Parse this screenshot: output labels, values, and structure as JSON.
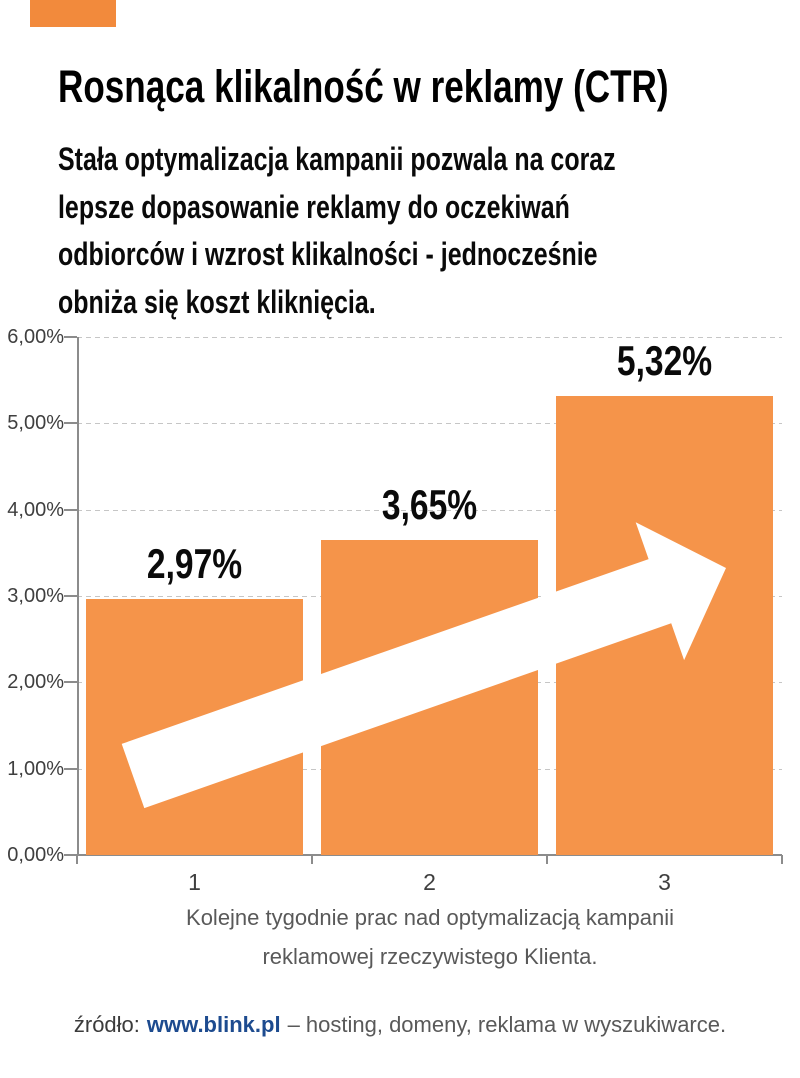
{
  "header": {
    "title": "Rosnąca klikalność w reklamy (CTR)",
    "subtitle_lines": [
      "Stała optymalizacja kampanii pozwala na coraz",
      "lepsze dopasowanie reklamy do oczekiwań",
      "odbiorców i wzrost klikalności - jednocześnie",
      "obniża się koszt kliknięcia."
    ]
  },
  "chart_data": {
    "type": "bar",
    "categories": [
      "1",
      "2",
      "3"
    ],
    "values": [
      2.97,
      3.65,
      5.32
    ],
    "value_labels": [
      "2,97%",
      "3,65%",
      "5,32%"
    ],
    "y_tick_labels": [
      "6,00%",
      "5,00%",
      "4,00%",
      "3,00%",
      "2,00%",
      "1,00%",
      "0,00%"
    ],
    "ylim": [
      0,
      6
    ],
    "y_step": 1,
    "grid": "horizontal-dashed",
    "legend": "none",
    "annotation": "white upward trend arrow across bars",
    "caption_lines": [
      "Kolejne tygodnie prac nad optymalizacją kampanii",
      "reklamowej rzeczywistego Klienta."
    ]
  },
  "footer": {
    "prefix": "źródło:",
    "link": "www.blink.pl",
    "rest": "– hosting, domeny, reklama w wyszukiwarce."
  },
  "colors": {
    "bar_orange": "#F5944A",
    "flag_orange": "#F28A3C",
    "grid_gray": "#C6C6C6",
    "axis_gray": "#8C8C8C",
    "tick_label": "#3F3F3F",
    "caption_gray": "#595959",
    "title_black": "#000000",
    "link_blue": "#1D4B8F",
    "arrow_white": "#FFFFFF"
  }
}
